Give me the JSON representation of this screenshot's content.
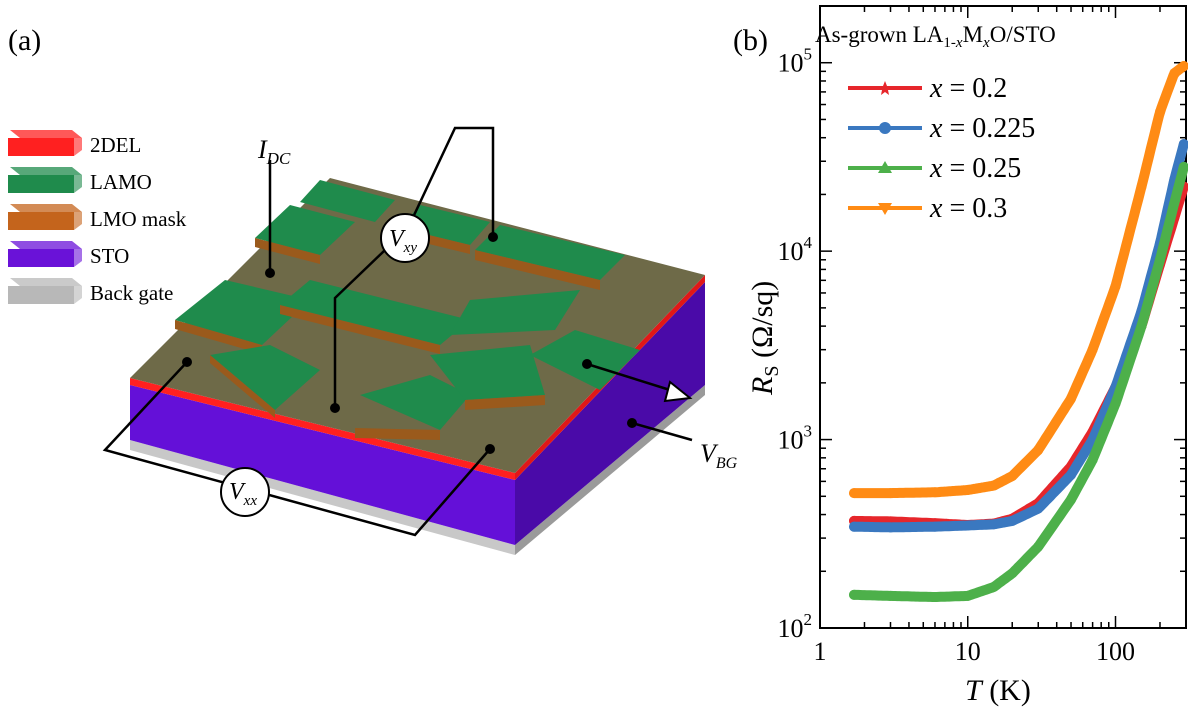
{
  "figure": {
    "panel_a": {
      "label": "(a)",
      "legend": [
        {
          "label": "2DEL",
          "color": "#ff2020"
        },
        {
          "label": "LAMO",
          "color": "#1f8b4c"
        },
        {
          "label": "LMO mask",
          "color": "#c4641c"
        },
        {
          "label": "STO",
          "color": "#6a12d8"
        },
        {
          "label": "Back gate",
          "color": "#b8b8b8"
        }
      ],
      "annotations": {
        "idc_main": "I",
        "idc_sub": "DC",
        "vxy_main": "V",
        "vxy_sub": "xy",
        "vxx_main": "V",
        "vxx_sub": "xx",
        "vbg_main": "V",
        "vbg_sub": "BG"
      }
    },
    "panel_b": {
      "label": "(b)",
      "title_main": "As-grown LA",
      "title_sub1": "1-",
      "title_sub2": "x",
      "title_mid": "M",
      "title_sub3": "x",
      "title_end": "O/STO",
      "ylabel_main": "R",
      "ylabel_sub": "S",
      "ylabel_unit": " (Ω/sq)",
      "xlabel_main": "T",
      "xlabel_unit": " (K)"
    }
  },
  "chart_data": {
    "type": "line",
    "x_scale": "log",
    "y_scale": "log",
    "xlim": [
      1,
      300
    ],
    "ylim": [
      100,
      200000
    ],
    "xticks": [
      1,
      10,
      100
    ],
    "xtick_labels": [
      "1",
      "10",
      "100"
    ],
    "yticks": [
      100,
      1000,
      10000,
      100000
    ],
    "ytick_labels": [
      [
        "10",
        "2"
      ],
      [
        "10",
        "3"
      ],
      [
        "10",
        "4"
      ],
      [
        "10",
        "5"
      ]
    ],
    "xlabel": "T (K)",
    "ylabel": "R_S (Ω/sq)",
    "legend_position": "top-left",
    "series": [
      {
        "name": "x = 0.2",
        "legend_main": "x",
        "legend_val": " = 0.2",
        "color": "#e6262b",
        "marker": "star",
        "x": [
          1.7,
          3,
          6,
          10,
          15,
          20,
          30,
          50,
          70,
          100,
          150,
          200,
          250,
          290
        ],
        "y": [
          370,
          368,
          360,
          352,
          358,
          380,
          460,
          720,
          1100,
          1900,
          4000,
          8500,
          15000,
          22000
        ]
      },
      {
        "name": "x = 0.225",
        "legend_main": "x",
        "legend_val": " = 0.225",
        "color": "#3a78c0",
        "marker": "circle",
        "x": [
          1.7,
          3,
          6,
          10,
          15,
          20,
          30,
          50,
          70,
          100,
          150,
          200,
          250,
          290
        ],
        "y": [
          345,
          342,
          345,
          350,
          355,
          370,
          430,
          650,
          1000,
          1900,
          4800,
          11000,
          24000,
          37000
        ]
      },
      {
        "name": "x = 0.25",
        "legend_main": "x",
        "legend_val": " = 0.25",
        "color": "#4db04a",
        "marker": "triangle-up",
        "x": [
          1.7,
          3,
          6,
          10,
          15,
          20,
          30,
          50,
          70,
          100,
          150,
          200,
          250,
          290
        ],
        "y": [
          150,
          148,
          146,
          148,
          165,
          195,
          270,
          480,
          780,
          1550,
          4000,
          9000,
          18000,
          28000
        ]
      },
      {
        "name": "x = 0.3",
        "legend_main": "x",
        "legend_val": " = 0.3",
        "color": "#ff8b14",
        "marker": "triangle-down",
        "x": [
          1.7,
          3,
          6,
          10,
          15,
          20,
          30,
          50,
          70,
          100,
          150,
          200,
          250,
          290
        ],
        "y": [
          520,
          520,
          525,
          540,
          570,
          640,
          880,
          1650,
          3000,
          6500,
          22000,
          55000,
          88000,
          96000
        ]
      }
    ]
  }
}
